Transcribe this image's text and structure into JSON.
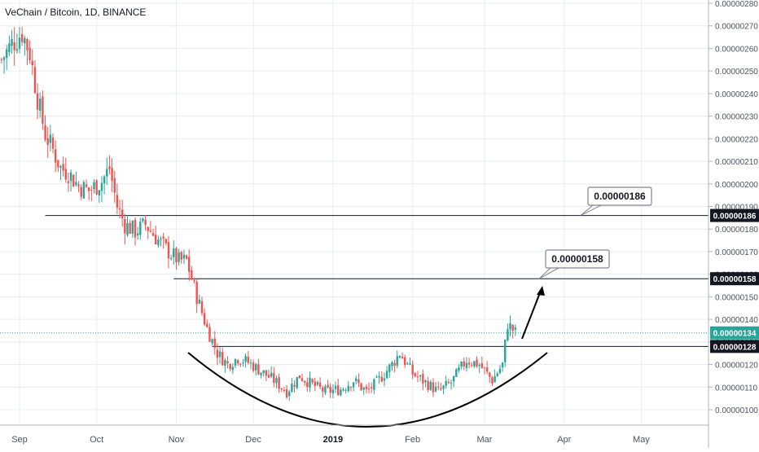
{
  "header": {
    "title": "VeChain / Bitcoin, 1D, BINANCE"
  },
  "chart_data": {
    "type": "candlestick",
    "title": "VeChain / Bitcoin, 1D, BINANCE",
    "ylim": [
      9.5e-08,
      2.8e-07
    ],
    "y_ticks": [
      "0.00000100",
      "0.00000110",
      "0.00000120",
      "0.00000130",
      "0.00000140",
      "0.00000150",
      "0.00000160",
      "0.00000170",
      "0.00000180",
      "0.00000190",
      "0.00000200",
      "0.00000210",
      "0.00000220",
      "0.00000230",
      "0.00000240",
      "0.00000250",
      "0.00000260",
      "0.00000270",
      "0.00000280"
    ],
    "y_tick_values": [
      1.0,
      1.1,
      1.2,
      1.3,
      1.4,
      1.5,
      1.6,
      1.7,
      1.8,
      1.9,
      2.0,
      2.1,
      2.2,
      2.3,
      2.4,
      2.5,
      2.6,
      2.7,
      2.8
    ],
    "x_ticks": [
      {
        "label": "Sep",
        "date": "2018-09-01",
        "bold": false
      },
      {
        "label": "Oct",
        "date": "2018-10-01",
        "bold": false
      },
      {
        "label": "Nov",
        "date": "2018-11-01",
        "bold": false
      },
      {
        "label": "Dec",
        "date": "2018-12-01",
        "bold": false
      },
      {
        "label": "2019",
        "date": "2019-01-01",
        "bold": true
      },
      {
        "label": "Feb",
        "date": "2019-02-01",
        "bold": false
      },
      {
        "label": "Mar",
        "date": "2019-03-01",
        "bold": false
      },
      {
        "label": "Apr",
        "date": "2019-04-01",
        "bold": false
      },
      {
        "label": "May",
        "date": "2019-05-01",
        "bold": false
      }
    ],
    "levels": [
      {
        "value": 1.86,
        "label": "0.00000186",
        "from": "2018-09-11",
        "callout": true
      },
      {
        "value": 1.58,
        "label": "0.00000158",
        "from": "2018-10-31",
        "callout": true
      },
      {
        "value": 1.28,
        "label": "0.00000128",
        "from": "2018-11-15",
        "callout": false
      }
    ],
    "current_price": {
      "value": 1.34,
      "label": "0.00000134"
    },
    "colors": {
      "up": "#26a69a",
      "down": "#ef5350",
      "grid": "#e9ecf2",
      "text": "#50535e",
      "line": "#131722",
      "current": "#26a69a"
    },
    "close_path": [
      [
        "2018-08-25",
        2.55
      ],
      [
        "2018-08-29",
        2.62
      ],
      [
        "2018-09-02",
        2.67
      ],
      [
        "2018-09-05",
        2.58
      ],
      [
        "2018-09-08",
        2.38
      ],
      [
        "2018-09-11",
        2.22
      ],
      [
        "2018-09-14",
        2.15
      ],
      [
        "2018-09-17",
        2.07
      ],
      [
        "2018-09-20",
        2.05
      ],
      [
        "2018-09-24",
        1.99
      ],
      [
        "2018-09-28",
        1.97
      ],
      [
        "2018-10-03",
        2.01
      ],
      [
        "2018-10-06",
        2.07
      ],
      [
        "2018-10-09",
        1.9
      ],
      [
        "2018-10-12",
        1.82
      ],
      [
        "2018-10-16",
        1.79
      ],
      [
        "2018-10-20",
        1.82
      ],
      [
        "2018-10-25",
        1.75
      ],
      [
        "2018-10-29",
        1.7
      ],
      [
        "2018-11-02",
        1.66
      ],
      [
        "2018-11-05",
        1.66
      ],
      [
        "2018-11-09",
        1.5
      ],
      [
        "2018-11-13",
        1.36
      ],
      [
        "2018-11-17",
        1.25
      ],
      [
        "2018-11-21",
        1.2
      ],
      [
        "2018-11-25",
        1.23
      ],
      [
        "2018-11-29",
        1.21
      ],
      [
        "2018-12-04",
        1.17
      ],
      [
        "2018-12-09",
        1.13
      ],
      [
        "2018-12-14",
        1.08
      ],
      [
        "2018-12-19",
        1.15
      ],
      [
        "2018-12-24",
        1.11
      ],
      [
        "2018-12-29",
        1.08
      ],
      [
        "2019-01-04",
        1.09
      ],
      [
        "2019-01-09",
        1.13
      ],
      [
        "2019-01-14",
        1.08
      ],
      [
        "2019-01-18",
        1.12
      ],
      [
        "2019-01-24",
        1.2
      ],
      [
        "2019-01-27",
        1.25
      ],
      [
        "2019-02-01",
        1.16
      ],
      [
        "2019-02-06",
        1.12
      ],
      [
        "2019-02-11",
        1.08
      ],
      [
        "2019-02-16",
        1.12
      ],
      [
        "2019-02-22",
        1.22
      ],
      [
        "2019-02-27",
        1.2
      ],
      [
        "2019-03-04",
        1.13
      ],
      [
        "2019-03-08",
        1.2
      ],
      [
        "2019-03-10",
        1.38
      ],
      [
        "2019-03-13",
        1.34
      ]
    ]
  }
}
